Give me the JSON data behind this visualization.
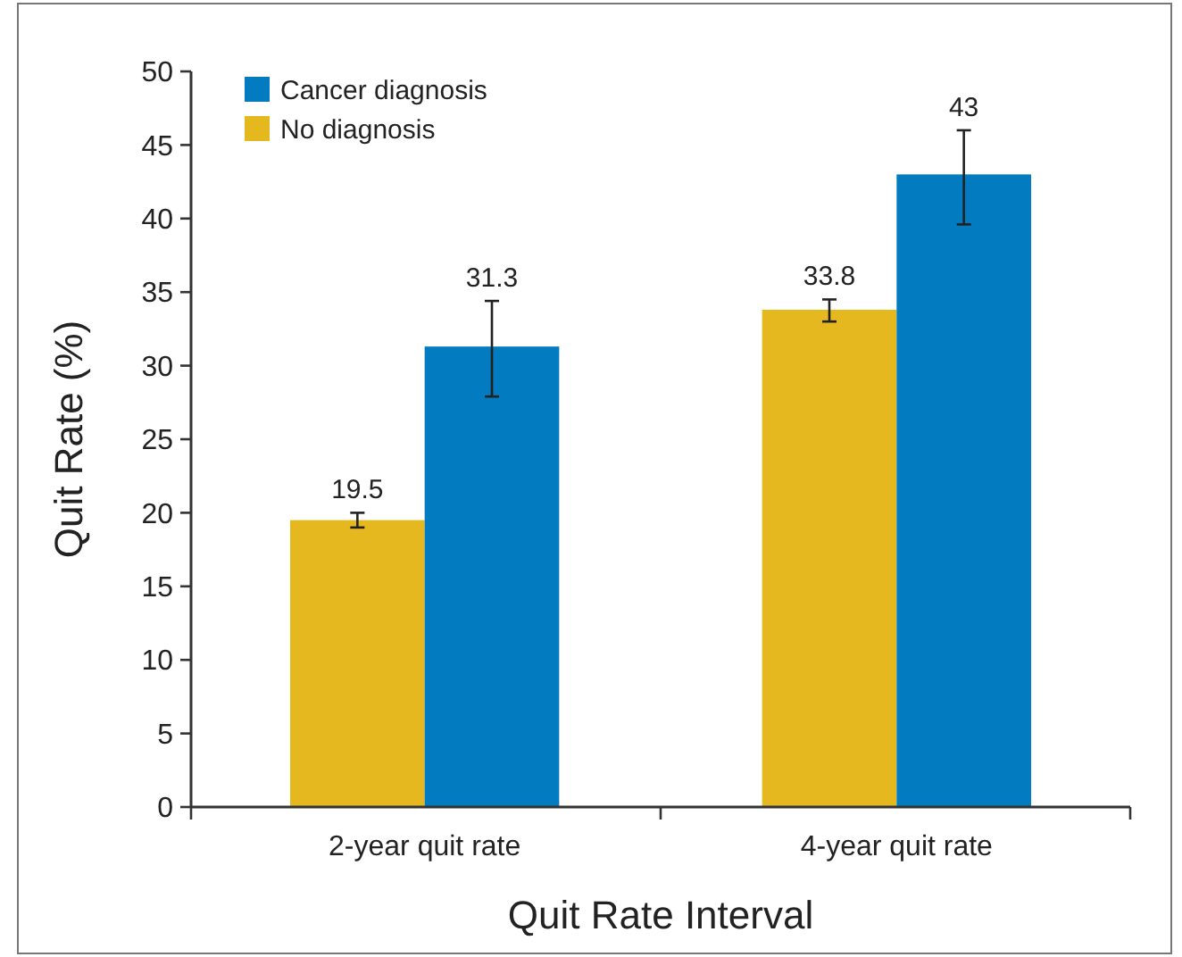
{
  "chart_data": {
    "type": "bar",
    "xlabel": "Quit Rate Interval",
    "ylabel": "Quit Rate (%)",
    "categories": [
      "2-year quit rate",
      "4-year quit rate"
    ],
    "series": [
      {
        "name": "No diagnosis",
        "color": "#e6b820",
        "values": [
          19.5,
          33.8
        ],
        "errors": [
          [
            19.0,
            20.0
          ],
          [
            33.0,
            34.5
          ]
        ]
      },
      {
        "name": "Cancer diagnosis",
        "color": "#027bc1",
        "values": [
          31.3,
          43
        ],
        "errors": [
          [
            27.9,
            34.4
          ],
          [
            39.6,
            46.0
          ]
        ]
      }
    ],
    "ylim": [
      0,
      50
    ],
    "yticks": [
      0,
      5,
      10,
      15,
      20,
      25,
      30,
      35,
      40,
      45,
      50
    ],
    "data_labels": true,
    "legend": "top left",
    "grid": false
  }
}
